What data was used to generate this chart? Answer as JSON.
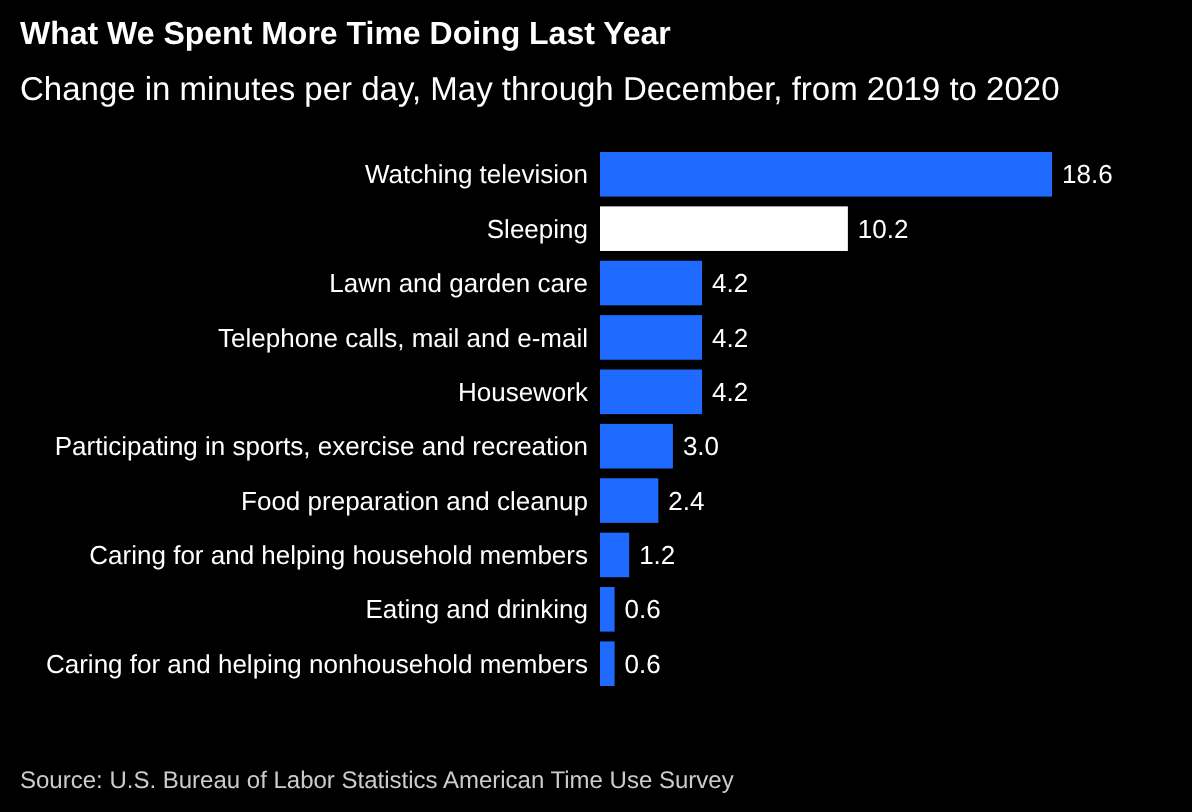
{
  "chart_data": {
    "type": "bar",
    "orientation": "horizontal",
    "title": "What We Spent More Time Doing Last Year",
    "subtitle": "Change in minutes per day, May through December, from 2019 to 2020",
    "categories": [
      "Watching television",
      "Sleeping",
      "Lawn and garden care",
      "Telephone calls, mail and e-mail",
      "Housework",
      "Participating in sports, exercise and recreation",
      "Food preparation and cleanup",
      "Caring for and helping household members",
      "Eating and drinking",
      "Caring for and helping nonhousehold members"
    ],
    "values": [
      18.6,
      10.2,
      4.2,
      4.2,
      4.2,
      3.0,
      2.4,
      1.2,
      0.6,
      0.6
    ],
    "colors": [
      "#1f6bff",
      "#ffffff",
      "#1f6bff",
      "#1f6bff",
      "#1f6bff",
      "#1f6bff",
      "#1f6bff",
      "#1f6bff",
      "#1f6bff",
      "#1f6bff"
    ],
    "value_labels": [
      "18.6",
      "10.2",
      "4.2",
      "4.2",
      "4.2",
      "3.0",
      "2.4",
      "1.2",
      "0.6",
      "0.6"
    ],
    "xlim": [
      0,
      18.6
    ],
    "annotations": [
      "Source: U.S. Bureau of Labor Statistics American Time Use Survey"
    ]
  }
}
